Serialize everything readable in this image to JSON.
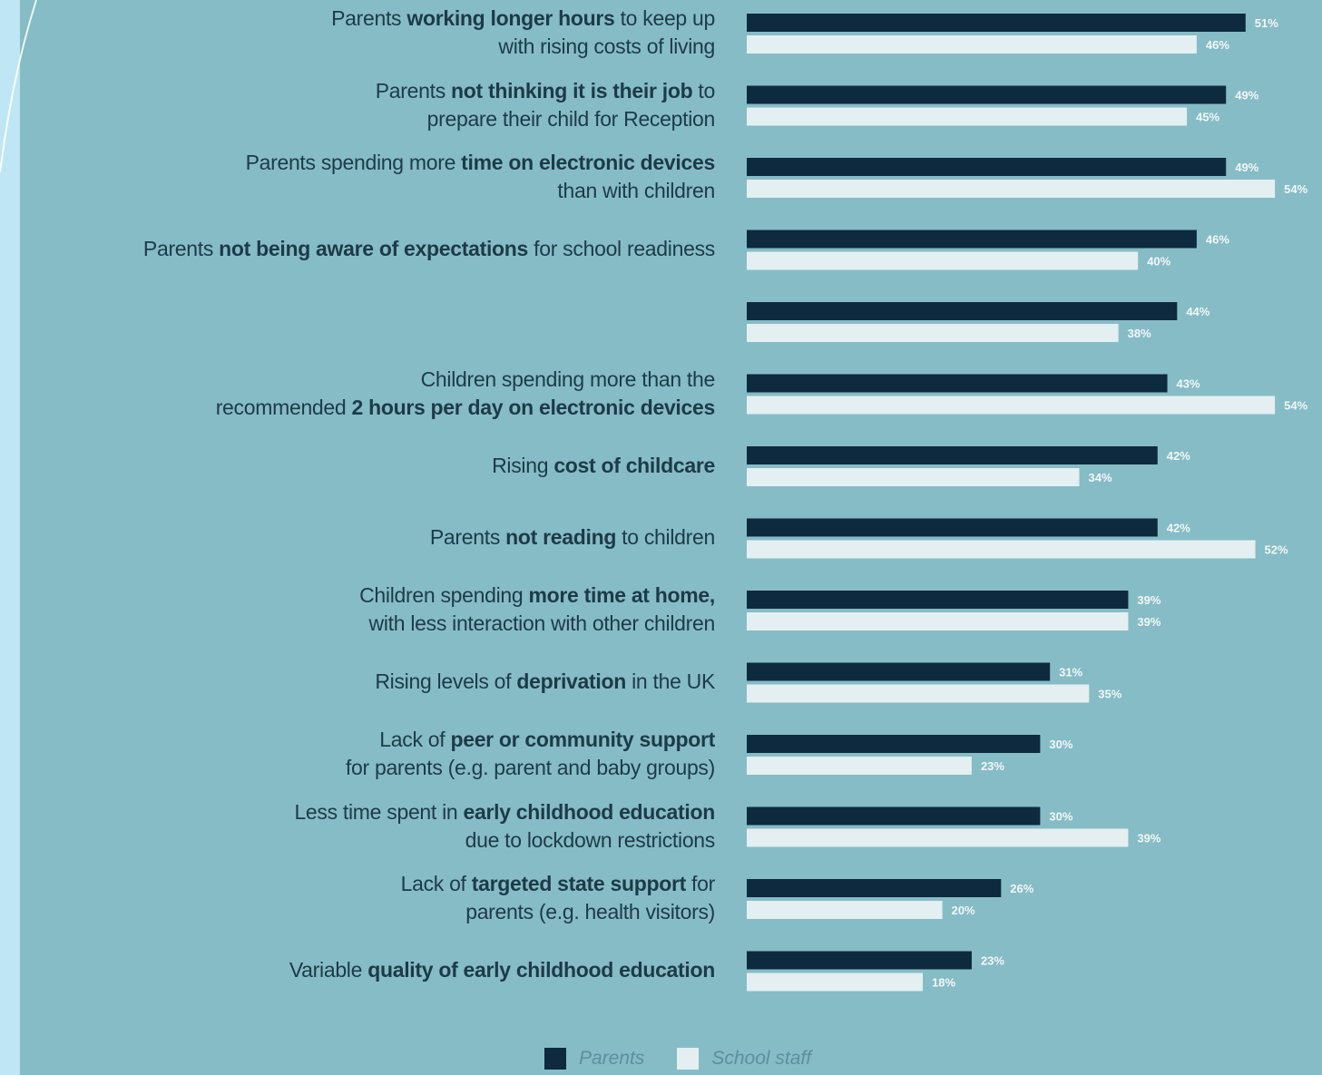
{
  "colors": {
    "page_bg": "#bfe6f4",
    "panel_bg": "#86bcc5",
    "parents": "#0d2a3e",
    "school_staff": "#e4eff1",
    "label_text": "#1d3a4a",
    "value_text": "#f2f7f8"
  },
  "chart_data": {
    "type": "bar",
    "orientation": "horizontal",
    "categories": [
      "Parents working longer hours to keep up with rising costs of living",
      "Parents not thinking it is their job to prepare their child for Reception",
      "Parents spending more time on electronic devices than with children",
      "Parents not being aware of expectations for school readiness",
      "",
      "Children spending more than the recommended 2 hours per day on electronic devices",
      "Rising cost of childcare",
      "Parents not reading to children",
      "Children spending more time at home, with less interaction with other children",
      "Rising levels of deprivation in the UK",
      "Lack of peer or community support for parents (e.g. parent and baby groups)",
      "Less time spent in early childhood education due to lockdown restrictions",
      "Lack of targeted state support for parents (e.g. health visitors)",
      "Variable quality of early childhood education"
    ],
    "label_lines": [
      [
        [
          "Parents ",
          {
            "b": "working longer hours"
          },
          " to keep up"
        ],
        [
          "with rising costs of living"
        ]
      ],
      [
        [
          "Parents ",
          {
            "b": "not thinking it is their job"
          },
          " to"
        ],
        [
          "prepare their child for Reception"
        ]
      ],
      [
        [
          "Parents spending more ",
          {
            "b": "time on electronic devices"
          }
        ],
        [
          "than with children"
        ]
      ],
      [
        [
          "Parents ",
          {
            "b": "not being aware of expectations"
          },
          " for school readiness"
        ]
      ],
      [],
      [
        [
          "Children spending more than the"
        ],
        [
          "recommended ",
          {
            "b": "2 hours per day on electronic  devices"
          }
        ]
      ],
      [
        [
          "Rising ",
          {
            "b": "cost of childcare"
          }
        ]
      ],
      [
        [
          "Parents ",
          {
            "b": "not reading"
          },
          " to children"
        ]
      ],
      [
        [
          "Children spending ",
          {
            "b": "more time at home,"
          }
        ],
        [
          "with less interaction with other children"
        ]
      ],
      [
        [
          "Rising levels of ",
          {
            "b": "deprivation"
          },
          " in the UK"
        ]
      ],
      [
        [
          "Lack of ",
          {
            "b": "peer or community support"
          }
        ],
        [
          "for parents (e.g. parent and baby groups)"
        ]
      ],
      [
        [
          "Less time spent in ",
          {
            "b": "early childhood education"
          }
        ],
        [
          "due to lockdown restrictions"
        ]
      ],
      [
        [
          "Lack of ",
          {
            "b": "targeted state support"
          },
          " for"
        ],
        [
          "parents (e.g. health visitors)"
        ]
      ],
      [
        [
          "Variable ",
          {
            "b": "quality of early childhood education"
          }
        ]
      ]
    ],
    "series": [
      {
        "name": "Parents",
        "color": "#0d2a3e",
        "values": [
          51,
          49,
          49,
          46,
          44,
          43,
          42,
          42,
          39,
          31,
          30,
          30,
          26,
          23
        ]
      },
      {
        "name": "School staff",
        "color": "#e4eff1",
        "values": [
          46,
          45,
          54,
          40,
          38,
          54,
          34,
          52,
          39,
          35,
          23,
          39,
          20,
          18
        ]
      }
    ],
    "value_suffix": "%",
    "xlim": [
      0,
      56
    ],
    "legend_position": "bottom-center",
    "grid": false
  },
  "legend": {
    "items": [
      {
        "label": "Parents",
        "color": "#0d2a3e"
      },
      {
        "label": "School staff",
        "color": "#e4eff1"
      }
    ]
  }
}
